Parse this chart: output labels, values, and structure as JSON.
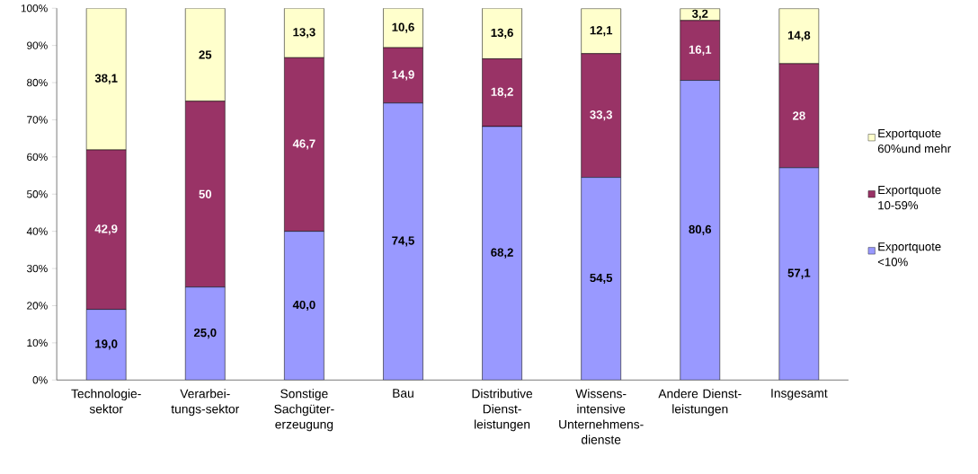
{
  "chart_data": {
    "type": "bar",
    "stacked": true,
    "categories": [
      "Technologie-sektor",
      "Verarbei-tungs-sektor",
      "Sonstige Sachgüter-erzeugung",
      "Bau",
      "Distributive Dienst-leistungen",
      "Wissens-intensive Unternehmens-dienste",
      "Andere Dienst-leistungen",
      "Insgesamt"
    ],
    "series": [
      {
        "name": "Exportquote <10%",
        "color": "#9999ff",
        "values": [
          19.0,
          25.0,
          40.0,
          74.5,
          68.2,
          54.5,
          80.6,
          57.1
        ],
        "value_labels": [
          "19,0",
          "25,0",
          "40,0",
          "74,5",
          "68,2",
          "54,5",
          "80,6",
          "57,1"
        ]
      },
      {
        "name": "Exportquote 10-59%",
        "color": "#993366",
        "values": [
          42.9,
          50,
          46.7,
          14.9,
          18.2,
          33.3,
          16.1,
          28
        ],
        "value_labels": [
          "42,9",
          "50",
          "46,7",
          "14,9",
          "18,2",
          "33,3",
          "16,1",
          "28"
        ]
      },
      {
        "name": "Exportquote 60%und mehr",
        "color": "#ffffcc",
        "values": [
          38.1,
          25,
          13.3,
          10.6,
          13.6,
          12.1,
          3.2,
          14.8
        ],
        "value_labels": [
          "38,1",
          "25",
          "13,3",
          "10,6",
          "13,6",
          "12,1",
          "3,2",
          "14,8"
        ]
      }
    ],
    "ylim": [
      0,
      100
    ],
    "yticks": [
      {
        "value": 0,
        "label": "0%"
      },
      {
        "value": 10,
        "label": "10%"
      },
      {
        "value": 20,
        "label": "20%"
      },
      {
        "value": 30,
        "label": "30%"
      },
      {
        "value": 40,
        "label": "40%"
      },
      {
        "value": 50,
        "label": "50%"
      },
      {
        "value": 60,
        "label": "60%"
      },
      {
        "value": 70,
        "label": "70%"
      },
      {
        "value": 80,
        "label": "80%"
      },
      {
        "value": 90,
        "label": "90%"
      },
      {
        "value": 100,
        "label": "100%"
      }
    ],
    "grid": false,
    "legend": "right"
  }
}
